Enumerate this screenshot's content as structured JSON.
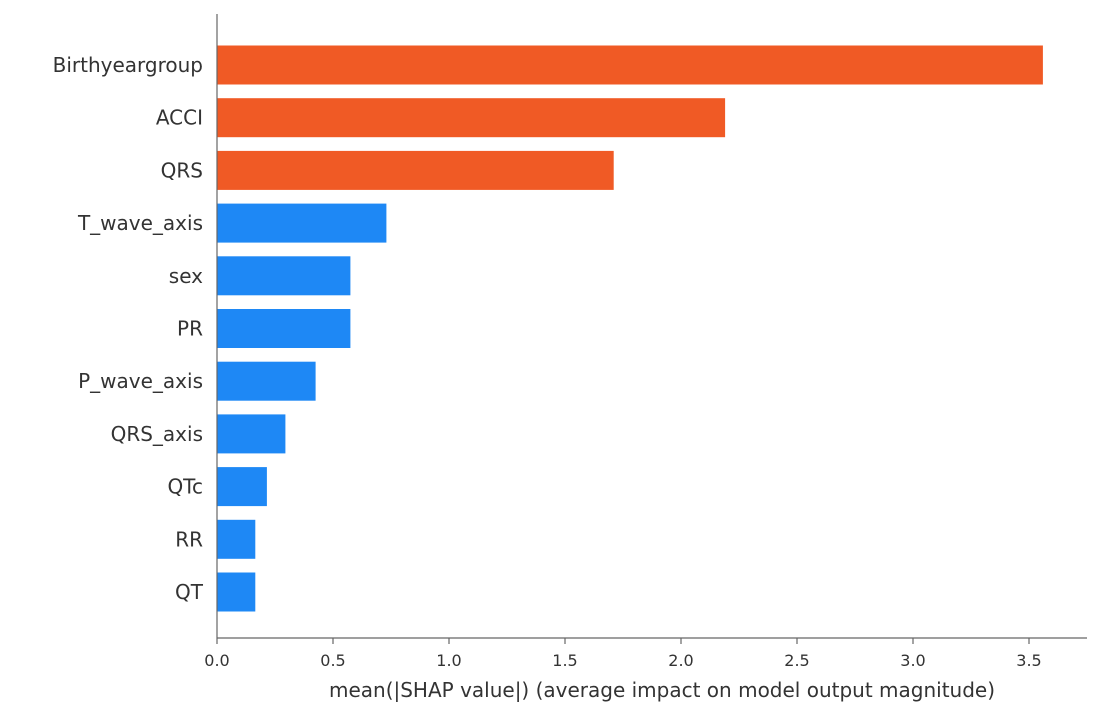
{
  "chart_data": {
    "type": "bar",
    "orientation": "horizontal",
    "categories": [
      "Birthyeargroup",
      "ACCI",
      "QRS",
      "T_wave_axis",
      "sex",
      "PR",
      "P_wave_axis",
      "QRS_axis",
      "QTc",
      "RR",
      "QT"
    ],
    "values": [
      3.56,
      2.19,
      1.71,
      0.73,
      0.575,
      0.575,
      0.425,
      0.295,
      0.215,
      0.165,
      0.165
    ],
    "highlight_count": 3,
    "colors": {
      "highlight": "#f05a25",
      "default": "#1e88f5",
      "axis": "#666666"
    },
    "title": "",
    "xlabel": "mean(|SHAP value|) (average impact on model output magnitude)",
    "ylabel": "",
    "xlim": [
      0,
      3.75
    ],
    "xticks": [
      "0.0",
      "0.5",
      "1.0",
      "1.5",
      "2.0",
      "2.5",
      "3.0",
      "3.5"
    ],
    "grid": false,
    "legend": "none"
  }
}
